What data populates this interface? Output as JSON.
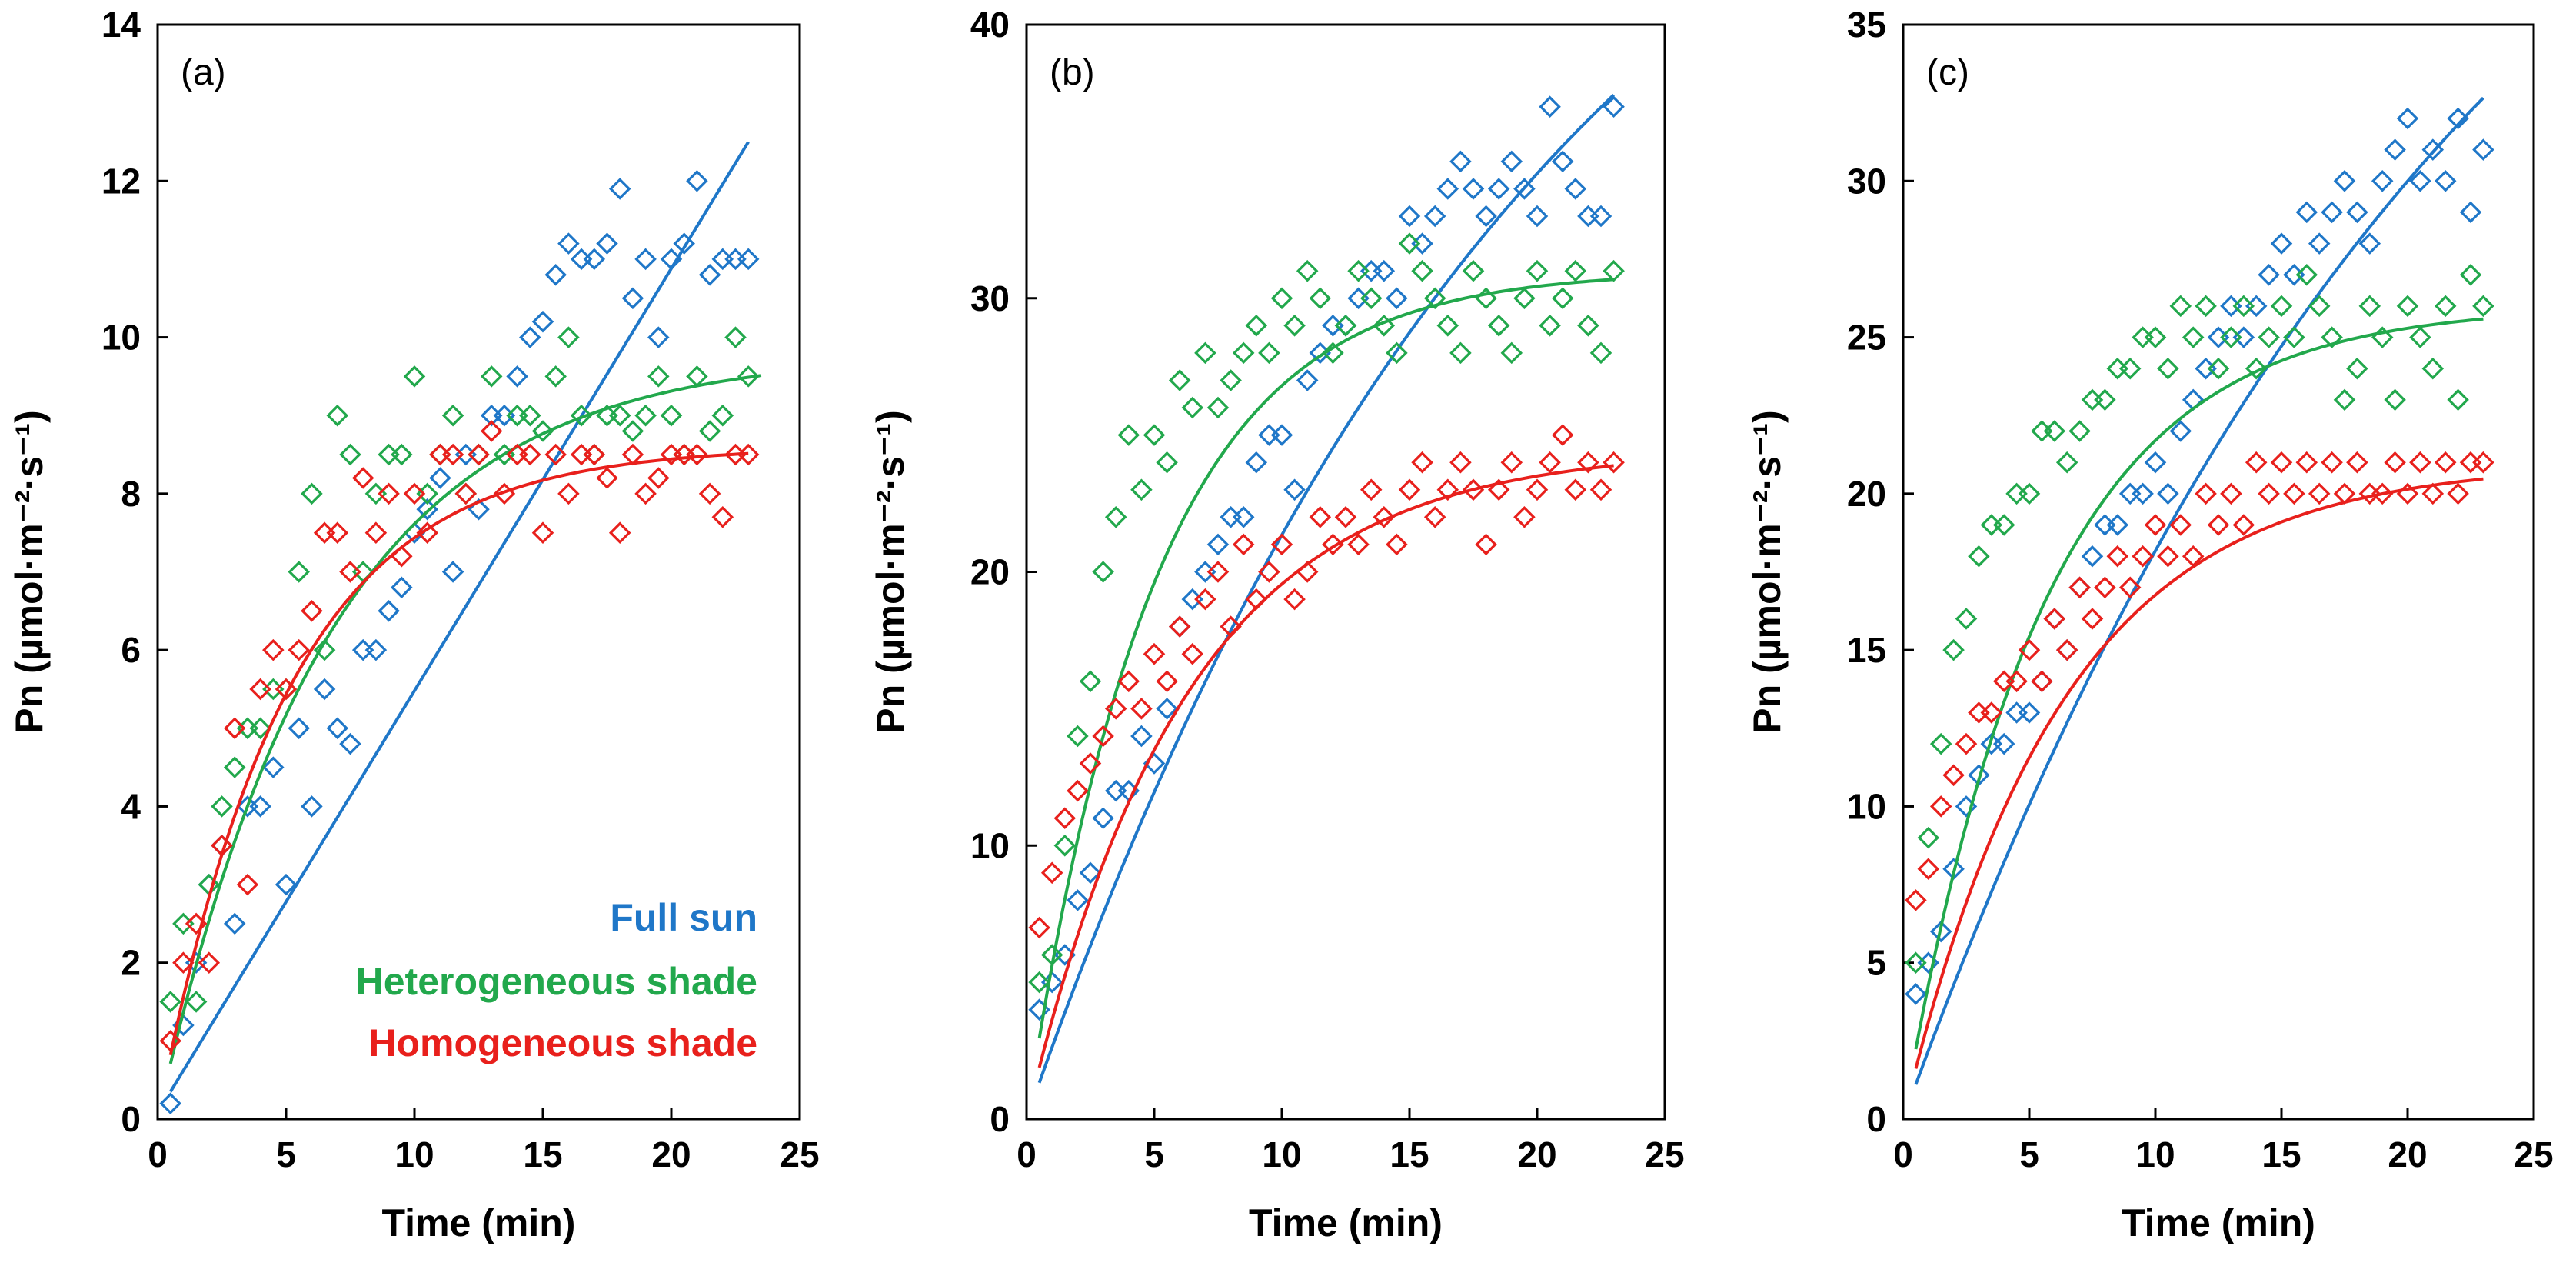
{
  "chart_data": [
    {
      "type": "scatter",
      "panel_label": "(a)",
      "xlabel": "Time (min)",
      "ylabel": "Pn (µmol·m⁻²·s⁻¹)",
      "xlim": [
        0,
        25
      ],
      "ylim": [
        0,
        14
      ],
      "xticks": [
        "0",
        "5",
        "10",
        "15",
        "20",
        "25"
      ],
      "yticks": [
        "0",
        "2",
        "4",
        "6",
        "8",
        "10",
        "12",
        "14"
      ],
      "legend": [
        "Full sun",
        "Heterogeneous shade",
        "Homogeneous shade"
      ],
      "legend_position": "bottom-right",
      "series": [
        {
          "name": "Full sun",
          "color": "#1f77c8",
          "fit": {
            "model": "linear",
            "a": 0.08,
            "b": 0.54,
            "x_from": 0.5,
            "x_to": 23
          },
          "x": [
            0.5,
            1,
            1.5,
            2,
            2.5,
            3,
            3.5,
            4,
            4.5,
            5,
            5.5,
            6,
            6.5,
            7,
            7.5,
            8,
            8.5,
            9,
            9.5,
            10,
            10.5,
            11,
            11.5,
            12,
            12.5,
            13,
            13.5,
            14,
            14.5,
            15,
            15.5,
            16,
            16.5,
            17,
            17.5,
            18,
            18.5,
            19,
            19.5,
            20,
            20.5,
            21,
            21.5,
            22,
            22.5,
            23
          ],
          "y": [
            0.2,
            1.2,
            2,
            3,
            3.5,
            2.5,
            4,
            4,
            4.5,
            3,
            5,
            4,
            5.5,
            5,
            4.8,
            6,
            6,
            6.5,
            6.8,
            7.5,
            7.8,
            8.2,
            7,
            8.5,
            7.8,
            9,
            9,
            9.5,
            10,
            10.2,
            10.8,
            11.2,
            11,
            11,
            11.2,
            11.9,
            10.5,
            11,
            10,
            11,
            11.2,
            12,
            10.8,
            11,
            11,
            11
          ]
        },
        {
          "name": "Heterogeneous shade",
          "color": "#22a84c",
          "fit": {
            "model": "saturating",
            "pmax": 9.8,
            "k": 0.15,
            "x_from": 0.5,
            "x_to": 23.5
          },
          "x": [
            0.5,
            1,
            1.5,
            2,
            2.5,
            3,
            3.5,
            4,
            4.5,
            5,
            5.5,
            6,
            6.5,
            7,
            7.5,
            8,
            8.5,
            9,
            9.5,
            10,
            10.5,
            11,
            11.5,
            12,
            12.5,
            13,
            13.5,
            14,
            14.5,
            15,
            15.5,
            16,
            16.5,
            17,
            17.5,
            18,
            18.5,
            19,
            19.5,
            20,
            20.5,
            21,
            21.5,
            22,
            22.5,
            23
          ],
          "y": [
            1.5,
            2.5,
            1.5,
            3,
            4,
            4.5,
            5,
            5,
            5.5,
            5.5,
            7,
            8,
            6,
            9,
            8.5,
            7,
            8,
            8.5,
            8.5,
            9.5,
            8,
            8.5,
            9,
            8,
            8.5,
            9.5,
            8.5,
            9,
            9,
            8.8,
            9.5,
            10,
            9,
            8.5,
            9,
            9,
            8.8,
            9,
            9.5,
            9,
            8.5,
            9.5,
            8.8,
            9,
            10,
            9.5
          ]
        },
        {
          "name": "Homogeneous shade",
          "color": "#e8201c",
          "fit": {
            "model": "saturating",
            "pmax": 8.6,
            "k": 0.2,
            "x_from": 0.5,
            "x_to": 23
          },
          "x": [
            0.5,
            1,
            1.5,
            2,
            2.5,
            3,
            3.5,
            4,
            4.5,
            5,
            5.5,
            6,
            6.5,
            7,
            7.5,
            8,
            8.5,
            9,
            9.5,
            10,
            10.5,
            11,
            11.5,
            12,
            12.5,
            13,
            13.5,
            14,
            14.5,
            15,
            15.5,
            16,
            16.5,
            17,
            17.5,
            18,
            18.5,
            19,
            19.5,
            20,
            20.5,
            21,
            21.5,
            22,
            22.5,
            23
          ],
          "y": [
            1,
            2,
            2.5,
            2,
            3.5,
            5,
            3,
            5.5,
            6,
            5.5,
            6,
            6.5,
            7.5,
            7.5,
            7,
            8.2,
            7.5,
            8,
            7.2,
            8,
            7.5,
            8.5,
            8.5,
            8,
            8.5,
            8.8,
            8,
            8.5,
            8.5,
            7.5,
            8.5,
            8,
            8.5,
            8.5,
            8.2,
            7.5,
            8.5,
            8,
            8.2,
            8.5,
            8.5,
            8.5,
            8,
            7.7,
            8.5,
            8.5
          ]
        }
      ]
    },
    {
      "type": "scatter",
      "panel_label": "(b)",
      "xlabel": "Time (min)",
      "ylabel": "Pn (µmol·m⁻²·s⁻¹)",
      "xlim": [
        0,
        25
      ],
      "ylim": [
        0,
        40
      ],
      "xticks": [
        "0",
        "5",
        "10",
        "15",
        "20",
        "25"
      ],
      "yticks": [
        "0",
        "10",
        "20",
        "30",
        "40"
      ],
      "series": [
        {
          "name": "Full sun",
          "color": "#1f77c8",
          "fit": {
            "model": "saturating",
            "pmax": 56,
            "k": 0.048,
            "x_from": 0.5,
            "x_to": 23
          },
          "x": [
            0.5,
            1,
            1.5,
            2,
            2.5,
            3,
            3.5,
            4,
            4.5,
            5,
            5.5,
            6,
            6.5,
            7,
            7.5,
            8,
            8.5,
            9,
            9.5,
            10,
            10.5,
            11,
            11.5,
            12,
            12.5,
            13,
            13.5,
            14,
            14.5,
            15,
            15.5,
            16,
            16.5,
            17,
            17.5,
            18,
            18.5,
            19,
            19.5,
            20,
            20.5,
            21,
            21.5,
            22,
            22.5,
            23
          ],
          "y": [
            4,
            5,
            6,
            8,
            9,
            11,
            12,
            12,
            14,
            13,
            15,
            18,
            19,
            20,
            21,
            22,
            22,
            24,
            25,
            25,
            23,
            27,
            28,
            29,
            29,
            30,
            31,
            31,
            30,
            33,
            32,
            33,
            34,
            35,
            34,
            33,
            34,
            35,
            34,
            33,
            37,
            35,
            34,
            33,
            33,
            37
          ]
        },
        {
          "name": "Heterogeneous shade",
          "color": "#22a84c",
          "fit": {
            "model": "saturating",
            "pmax": 31,
            "k": 0.2,
            "x_from": 0.5,
            "x_to": 23
          },
          "x": [
            0.5,
            1,
            1.5,
            2,
            2.5,
            3,
            3.5,
            4,
            4.5,
            5,
            5.5,
            6,
            6.5,
            7,
            7.5,
            8,
            8.5,
            9,
            9.5,
            10,
            10.5,
            11,
            11.5,
            12,
            12.5,
            13,
            13.5,
            14,
            14.5,
            15,
            15.5,
            16,
            16.5,
            17,
            17.5,
            18,
            18.5,
            19,
            19.5,
            20,
            20.5,
            21,
            21.5,
            22,
            22.5,
            23
          ],
          "y": [
            5,
            6,
            10,
            14,
            16,
            20,
            22,
            25,
            23,
            25,
            24,
            27,
            26,
            28,
            26,
            27,
            28,
            29,
            28,
            30,
            29,
            31,
            30,
            28,
            29,
            31,
            30,
            29,
            28,
            32,
            31,
            30,
            29,
            28,
            31,
            30,
            29,
            28,
            30,
            31,
            29,
            30,
            31,
            29,
            28,
            31
          ]
        },
        {
          "name": "Homogeneous shade",
          "color": "#e8201c",
          "fit": {
            "model": "saturating",
            "pmax": 24.5,
            "k": 0.16,
            "x_from": 0.5,
            "x_to": 23
          },
          "x": [
            0.5,
            1,
            1.5,
            2,
            2.5,
            3,
            3.5,
            4,
            4.5,
            5,
            5.5,
            6,
            6.5,
            7,
            7.5,
            8,
            8.5,
            9,
            9.5,
            10,
            10.5,
            11,
            11.5,
            12,
            12.5,
            13,
            13.5,
            14,
            14.5,
            15,
            15.5,
            16,
            16.5,
            17,
            17.5,
            18,
            18.5,
            19,
            19.5,
            20,
            20.5,
            21,
            21.5,
            22,
            22.5,
            23
          ],
          "y": [
            7,
            9,
            11,
            12,
            13,
            14,
            15,
            16,
            15,
            17,
            16,
            18,
            17,
            19,
            20,
            18,
            21,
            19,
            20,
            21,
            19,
            20,
            22,
            21,
            22,
            21,
            23,
            22,
            21,
            23,
            24,
            22,
            23,
            24,
            23,
            21,
            23,
            24,
            22,
            23,
            24,
            25,
            23,
            24,
            23,
            24
          ]
        }
      ]
    },
    {
      "type": "scatter",
      "panel_label": "(c)",
      "xlabel": "Time (min)",
      "ylabel": "Pn (µmol·m⁻²·s⁻¹)",
      "xlim": [
        0,
        25
      ],
      "ylim": [
        0,
        35
      ],
      "xticks": [
        "0",
        "5",
        "10",
        "15",
        "20",
        "25"
      ],
      "yticks": [
        "0",
        "5",
        "10",
        "15",
        "20",
        "25",
        "30",
        "35"
      ],
      "series": [
        {
          "name": "Full sun",
          "color": "#1f77c8",
          "fit": {
            "model": "saturating",
            "pmax": 52,
            "k": 0.043,
            "x_from": 0.5,
            "x_to": 23
          },
          "x": [
            0.5,
            1,
            1.5,
            2,
            2.5,
            3,
            3.5,
            4,
            4.5,
            5,
            5.5,
            6,
            6.5,
            7,
            7.5,
            8,
            8.5,
            9,
            9.5,
            10,
            10.5,
            11,
            11.5,
            12,
            12.5,
            13,
            13.5,
            14,
            14.5,
            15,
            15.5,
            16,
            16.5,
            17,
            17.5,
            18,
            18.5,
            19,
            19.5,
            20,
            20.5,
            21,
            21.5,
            22,
            22.5,
            23
          ],
          "y": [
            4,
            5,
            6,
            8,
            10,
            11,
            12,
            12,
            13,
            13,
            14,
            16,
            15,
            17,
            18,
            19,
            19,
            20,
            20,
            21,
            20,
            22,
            23,
            24,
            25,
            26,
            25,
            26,
            27,
            28,
            27,
            29,
            28,
            29,
            30,
            29,
            28,
            30,
            31,
            32,
            30,
            31,
            30,
            32,
            29,
            31
          ]
        },
        {
          "name": "Heterogeneous shade",
          "color": "#22a84c",
          "fit": {
            "model": "saturating",
            "pmax": 26,
            "k": 0.18,
            "x_from": 0.5,
            "x_to": 23
          },
          "x": [
            0.5,
            1,
            1.5,
            2,
            2.5,
            3,
            3.5,
            4,
            4.5,
            5,
            5.5,
            6,
            6.5,
            7,
            7.5,
            8,
            8.5,
            9,
            9.5,
            10,
            10.5,
            11,
            11.5,
            12,
            12.5,
            13,
            13.5,
            14,
            14.5,
            15,
            15.5,
            16,
            16.5,
            17,
            17.5,
            18,
            18.5,
            19,
            19.5,
            20,
            20.5,
            21,
            21.5,
            22,
            22.5,
            23
          ],
          "y": [
            5,
            9,
            12,
            15,
            16,
            18,
            19,
            19,
            20,
            20,
            22,
            22,
            21,
            22,
            23,
            23,
            24,
            24,
            25,
            25,
            24,
            26,
            25,
            26,
            24,
            25,
            26,
            24,
            25,
            26,
            25,
            27,
            26,
            25,
            23,
            24,
            26,
            25,
            23,
            26,
            25,
            24,
            26,
            23,
            27,
            26
          ]
        },
        {
          "name": "Homogeneous shade",
          "color": "#e8201c",
          "fit": {
            "model": "saturating",
            "pmax": 21,
            "k": 0.16,
            "x_from": 0.5,
            "x_to": 23
          },
          "x": [
            0.5,
            1,
            1.5,
            2,
            2.5,
            3,
            3.5,
            4,
            4.5,
            5,
            5.5,
            6,
            6.5,
            7,
            7.5,
            8,
            8.5,
            9,
            9.5,
            10,
            10.5,
            11,
            11.5,
            12,
            12.5,
            13,
            13.5,
            14,
            14.5,
            15,
            15.5,
            16,
            16.5,
            17,
            17.5,
            18,
            18.5,
            19,
            19.5,
            20,
            20.5,
            21,
            21.5,
            22,
            22.5,
            23
          ],
          "y": [
            7,
            8,
            10,
            11,
            12,
            13,
            13,
            14,
            14,
            15,
            14,
            16,
            15,
            17,
            16,
            17,
            18,
            17,
            18,
            19,
            18,
            19,
            18,
            20,
            19,
            20,
            19,
            21,
            20,
            21,
            20,
            21,
            20,
            21,
            20,
            21,
            20,
            20,
            21,
            20,
            21,
            20,
            21,
            20,
            21,
            21
          ]
        }
      ]
    }
  ]
}
